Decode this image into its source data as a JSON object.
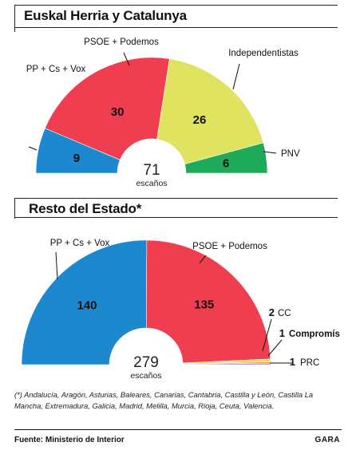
{
  "chart_data": [
    {
      "type": "parliament",
      "title": "Euskal Herria y Catalunya",
      "total": 71,
      "total_label": "escaños",
      "segments": [
        {
          "name": "PP + Cs + Vox",
          "value": 9,
          "color": "#1e88cf"
        },
        {
          "name": "PSOE + Podemos",
          "value": 30,
          "color": "#ee3e4f"
        },
        {
          "name": "Independentistas",
          "value": 26,
          "color": "#dfe35f"
        },
        {
          "name": "PNV",
          "value": 6,
          "color": "#1faa5a"
        }
      ]
    },
    {
      "type": "parliament",
      "title": "Resto del Estado*",
      "total": 279,
      "total_label": "escaños",
      "segments": [
        {
          "name": "PP + Cs + Vox",
          "value": 140,
          "color": "#1e88cf"
        },
        {
          "name": "PSOE + Podemos",
          "value": 135,
          "color": "#ee3e4f"
        },
        {
          "name": "CC",
          "value": 2,
          "color": "#e4d95a"
        },
        {
          "name": "Compromís",
          "value": 1,
          "color": "#e79a3b"
        },
        {
          "name": "PRC",
          "value": 1,
          "color": "#8e7cc3"
        }
      ]
    }
  ],
  "footnote": "(*) Andalucía, Aragón, Asturias, Baleares, Canarias, Cantabria, Castilla y León, Castilla La Mancha, Extremadura, Galicia, Madrid, Melilla, Murcia, Rioja, Ceuta, Valencia.",
  "source": "Fuente: Ministerio de Interior",
  "brand": "GARA"
}
